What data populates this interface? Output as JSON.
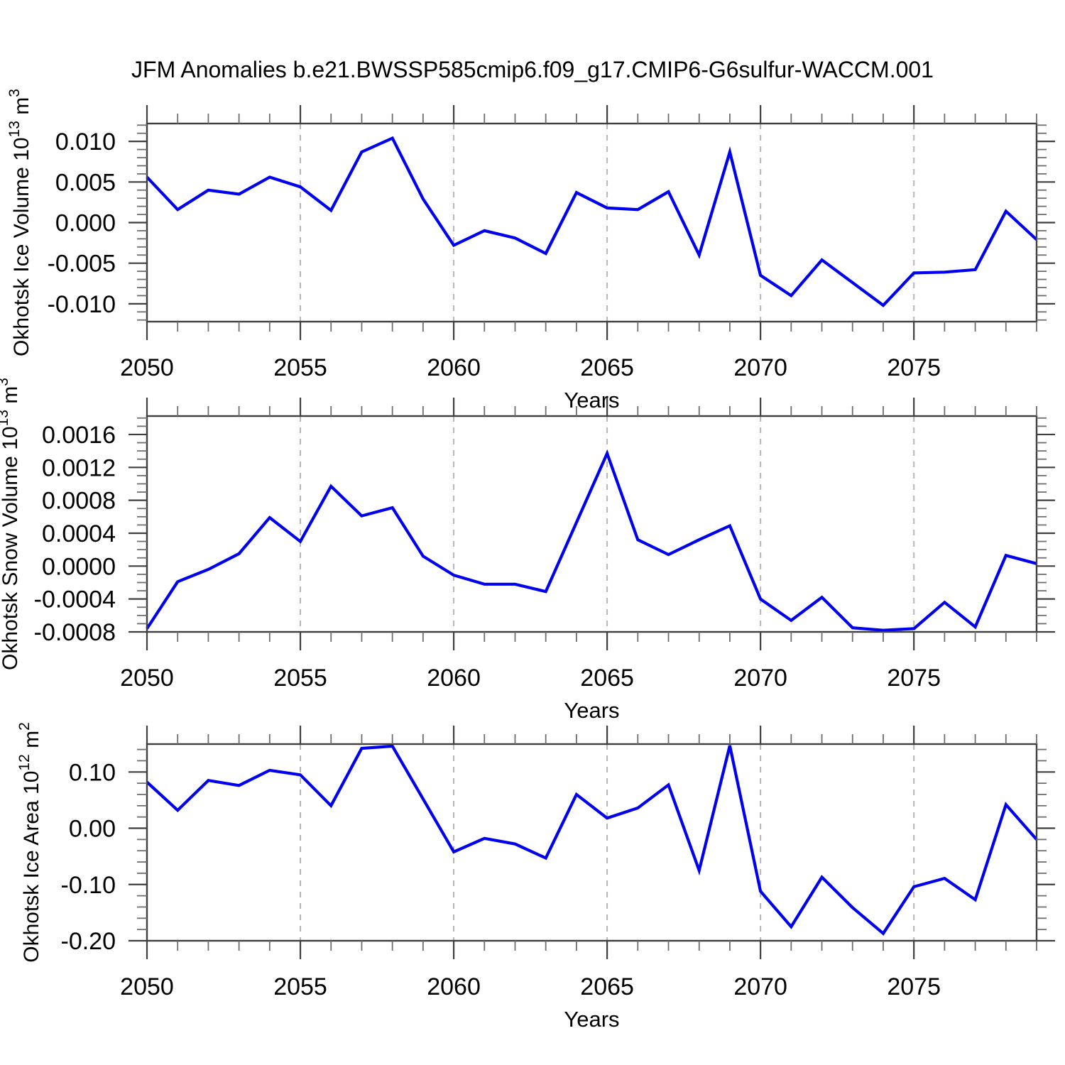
{
  "title": "JFM Anomalies b.e21.BWSSP585cmip6.f09_g17.CMIP6-G6sulfur-WACCM.001",
  "colors": {
    "line": "#0000f0",
    "grid": "#b5b5b5",
    "frame": "#3f3f3f",
    "minor_tick": "#6e6e6e",
    "text": "#000000",
    "background": "#ffffff"
  },
  "x_axis": {
    "label": "Years",
    "start": 2050,
    "end": 2079,
    "major_ticks": [
      2050,
      2055,
      2060,
      2065,
      2070,
      2075
    ],
    "minor_step": 1,
    "gridline_years": [
      2055,
      2060,
      2065,
      2070,
      2075
    ]
  },
  "years": [
    2050,
    2051,
    2052,
    2053,
    2054,
    2055,
    2056,
    2057,
    2058,
    2059,
    2060,
    2061,
    2062,
    2063,
    2064,
    2065,
    2066,
    2067,
    2068,
    2069,
    2070,
    2071,
    2072,
    2073,
    2074,
    2075,
    2076,
    2077,
    2078,
    2079
  ],
  "chart_data": [
    {
      "type": "line",
      "name": "okhotsk-ice-volume",
      "ylabel": "Okhotsk Ice Volume 10^13 m^3",
      "ylabel_segments": [
        {
          "t": "Okhotsk Ice Volume 10"
        },
        {
          "t": "13",
          "sup": true
        },
        {
          "t": " m"
        },
        {
          "t": "3",
          "sup": true
        }
      ],
      "ylim": [
        -0.0122,
        0.0122
      ],
      "yticks": [
        {
          "v": 0.01,
          "label": "0.010"
        },
        {
          "v": 0.005,
          "label": "0.005"
        },
        {
          "v": 0.0,
          "label": "0.000"
        },
        {
          "v": -0.005,
          "label": "-0.005"
        },
        {
          "v": -0.01,
          "label": "-0.010"
        }
      ],
      "yminor_step": 0.001,
      "values": [
        0.0056,
        0.0016,
        0.004,
        0.0035,
        0.0056,
        0.0044,
        0.0015,
        0.0087,
        0.0104,
        0.0029,
        -0.0028,
        -0.001,
        -0.0019,
        -0.0038,
        0.0037,
        0.0018,
        0.0016,
        0.0038,
        -0.004,
        0.0087,
        -0.0065,
        -0.009,
        -0.0046,
        -0.0074,
        -0.0102,
        -0.0062,
        -0.0061,
        -0.0058,
        0.0014,
        -0.0021
      ]
    },
    {
      "type": "line",
      "name": "okhotsk-snow-volume",
      "ylabel": "Okhotsk Snow Volume 10^13 m^3",
      "ylabel_segments": [
        {
          "t": "Okhotsk Snow Volume 10"
        },
        {
          "t": "13",
          "sup": true
        },
        {
          "t": " m"
        },
        {
          "t": "3",
          "sup": true
        }
      ],
      "ylim": [
        -0.0008,
        0.001824
      ],
      "yticks": [
        {
          "v": 0.0016,
          "label": "0.0016"
        },
        {
          "v": 0.0012,
          "label": "0.0012"
        },
        {
          "v": 0.0008,
          "label": "0.0008"
        },
        {
          "v": 0.0004,
          "label": "0.0004"
        },
        {
          "v": 0.0,
          "label": "0.0000"
        },
        {
          "v": -0.0004,
          "label": "-0.0004"
        },
        {
          "v": -0.0008,
          "label": "-0.0008"
        }
      ],
      "yminor_step": 0.0001,
      "values": [
        -0.00076,
        -0.00019,
        -4e-05,
        0.00015,
        0.00059,
        0.0003,
        0.00097,
        0.00061,
        0.00071,
        0.00012,
        -0.00011,
        -0.00022,
        -0.00022,
        -0.00031,
        0.00053,
        0.00137,
        0.00032,
        0.00014,
        0.00032,
        0.00049,
        -0.0004,
        -0.00066,
        -0.00038,
        -0.00075,
        -0.00078,
        -0.00076,
        -0.00044,
        -0.00074,
        0.00013,
        3e-05
      ]
    },
    {
      "type": "line",
      "name": "okhotsk-ice-area",
      "ylabel": "Okhotsk Ice Area 10^12 m^2",
      "ylabel_segments": [
        {
          "t": "Okhotsk Ice Area 10"
        },
        {
          "t": "12",
          "sup": true
        },
        {
          "t": " m"
        },
        {
          "t": "2",
          "sup": true
        }
      ],
      "ylim": [
        -0.2,
        0.1496
      ],
      "yticks": [
        {
          "v": 0.1,
          "label": "0.10"
        },
        {
          "v": 0.0,
          "label": "0.00"
        },
        {
          "v": -0.1,
          "label": "-0.10"
        },
        {
          "v": -0.2,
          "label": "-0.20"
        }
      ],
      "yminor_step": 0.02,
      "values": [
        0.082,
        0.032,
        0.085,
        0.076,
        0.103,
        0.095,
        0.04,
        0.142,
        0.146,
        0.052,
        -0.042,
        -0.018,
        -0.028,
        -0.053,
        0.06,
        0.018,
        0.036,
        0.077,
        -0.075,
        0.147,
        -0.112,
        -0.175,
        -0.087,
        -0.141,
        -0.187,
        -0.104,
        -0.089,
        -0.127,
        0.042,
        -0.02
      ]
    }
  ]
}
